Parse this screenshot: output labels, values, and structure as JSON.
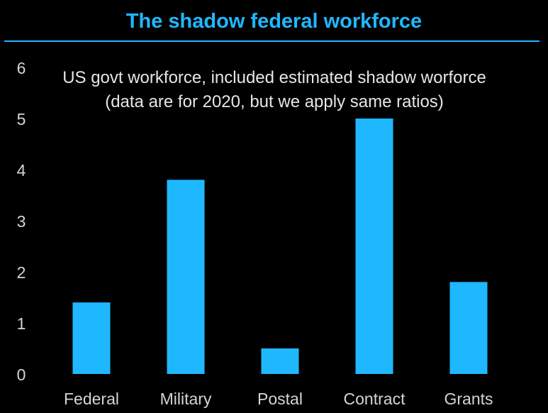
{
  "header": {
    "title": "The shadow federal workforce"
  },
  "colors": {
    "accent": "#1fb8ff",
    "bar": "#1fb8ff",
    "background": "#000000",
    "text": "#d4d4d4"
  },
  "chart_data": {
    "type": "bar",
    "title": "The shadow federal workforce",
    "subtitle": [
      "US govt workforce, included estimated shadow worforce",
      "(data are for 2020, but we apply same ratios)"
    ],
    "categories": [
      "Federal",
      "Military",
      "Postal",
      "Contract",
      "Grants"
    ],
    "values": [
      1.4,
      3.8,
      0.5,
      5.0,
      1.8
    ],
    "y_ticks": [
      "0",
      "1",
      "2",
      "3",
      "4",
      "5",
      "6"
    ],
    "xlabel": "",
    "ylabel": "",
    "ylim": [
      0,
      6
    ],
    "grid": false,
    "legend": "none"
  }
}
